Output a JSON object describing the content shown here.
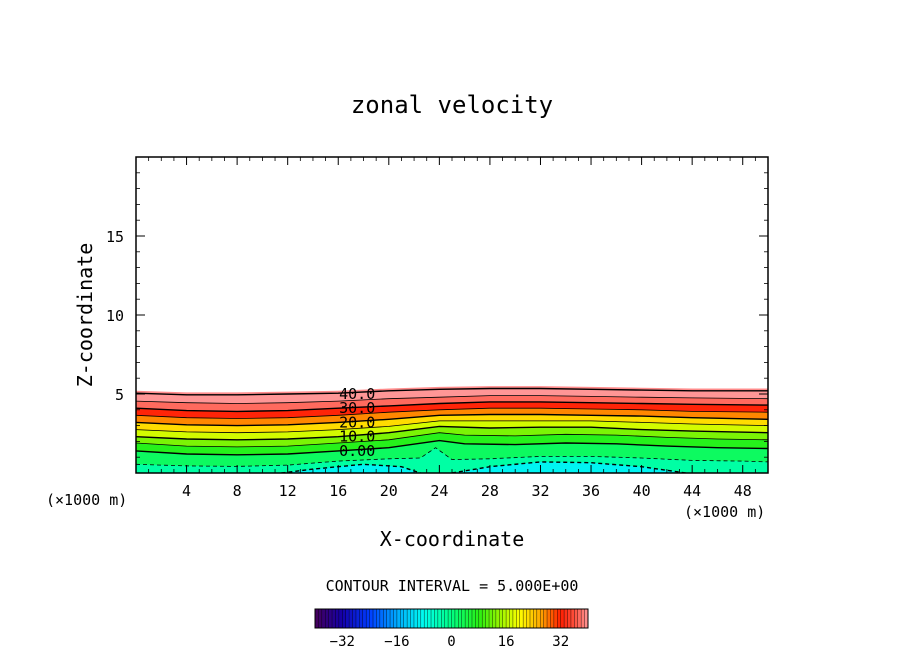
{
  "chart_data": {
    "type": "contour",
    "title": "zonal velocity",
    "xlabel": "X-coordinate",
    "ylabel": "Z-coordinate",
    "x_unit_label_left": "(×1000 m)",
    "x_unit_label_right": "(×1000 m)",
    "xlim": [
      0,
      50
    ],
    "ylim": [
      0,
      20
    ],
    "xticks": [
      4,
      8,
      12,
      16,
      20,
      24,
      28,
      32,
      36,
      40,
      44,
      48
    ],
    "yticks": [
      5,
      10,
      15
    ],
    "contour_interval_text": "CONTOUR INTERVAL = 5.000E+00",
    "contour_interval": 5,
    "contour_labels": [
      {
        "text": "40.0",
        "value": 40,
        "x": 17.5,
        "y": 5.0
      },
      {
        "text": "30.0",
        "value": 30,
        "x": 17.5,
        "y": 4.1
      },
      {
        "text": "20.0",
        "value": 20,
        "x": 17.5,
        "y": 3.2
      },
      {
        "text": "10.0",
        "value": 10,
        "x": 17.5,
        "y": 2.3
      },
      {
        "text": "0.00",
        "value": 0,
        "x": 17.5,
        "y": 1.4
      }
    ],
    "contour_levels": [
      {
        "value": -10,
        "dashed": true,
        "points": [
          [
            11.5,
            0
          ],
          [
            14,
            0.25
          ],
          [
            18,
            0.55
          ],
          [
            21,
            0.4
          ],
          [
            22.5,
            0
          ]
        ]
      },
      {
        "value": -10,
        "dashed": true,
        "points": [
          [
            25,
            0
          ],
          [
            28,
            0.4
          ],
          [
            32,
            0.7
          ],
          [
            36,
            0.65
          ],
          [
            40,
            0.4
          ],
          [
            43.5,
            0
          ]
        ]
      },
      {
        "value": -5,
        "dashed": true,
        "points": [
          [
            0,
            0.55
          ],
          [
            4,
            0.45
          ],
          [
            8,
            0.42
          ],
          [
            12,
            0.5
          ],
          [
            16,
            0.75
          ],
          [
            20,
            0.9
          ],
          [
            22.5,
            0.95
          ],
          [
            23.7,
            1.6
          ],
          [
            25,
            0.85
          ],
          [
            28,
            0.9
          ],
          [
            32,
            1.05
          ],
          [
            36,
            1.05
          ],
          [
            40,
            0.95
          ],
          [
            44,
            0.8
          ],
          [
            48,
            0.75
          ],
          [
            50,
            0.7
          ]
        ]
      },
      {
        "value": 0,
        "dashed": false,
        "points": [
          [
            0,
            1.4
          ],
          [
            4,
            1.2
          ],
          [
            8,
            1.15
          ],
          [
            12,
            1.2
          ],
          [
            16,
            1.4
          ],
          [
            20,
            1.6
          ],
          [
            24,
            2.05
          ],
          [
            26,
            1.85
          ],
          [
            30,
            1.8
          ],
          [
            34,
            1.9
          ],
          [
            38,
            1.85
          ],
          [
            42,
            1.7
          ],
          [
            46,
            1.6
          ],
          [
            50,
            1.55
          ]
        ]
      },
      {
        "value": 5,
        "dashed": false,
        "points": [
          [
            0,
            1.9
          ],
          [
            4,
            1.7
          ],
          [
            8,
            1.65
          ],
          [
            12,
            1.7
          ],
          [
            16,
            1.9
          ],
          [
            20,
            2.1
          ],
          [
            24,
            2.55
          ],
          [
            26,
            2.4
          ],
          [
            30,
            2.35
          ],
          [
            34,
            2.45
          ],
          [
            38,
            2.4
          ],
          [
            42,
            2.25
          ],
          [
            46,
            2.15
          ],
          [
            50,
            2.1
          ]
        ]
      },
      {
        "value": 10,
        "dashed": false,
        "points": [
          [
            0,
            2.3
          ],
          [
            4,
            2.15
          ],
          [
            8,
            2.1
          ],
          [
            12,
            2.15
          ],
          [
            16,
            2.3
          ],
          [
            20,
            2.55
          ],
          [
            24,
            2.95
          ],
          [
            28,
            2.85
          ],
          [
            32,
            2.9
          ],
          [
            36,
            2.9
          ],
          [
            40,
            2.75
          ],
          [
            44,
            2.65
          ],
          [
            50,
            2.55
          ]
        ]
      },
      {
        "value": 15,
        "dashed": false,
        "points": [
          [
            0,
            2.75
          ],
          [
            4,
            2.6
          ],
          [
            8,
            2.55
          ],
          [
            12,
            2.6
          ],
          [
            16,
            2.75
          ],
          [
            20,
            2.95
          ],
          [
            24,
            3.3
          ],
          [
            28,
            3.3
          ],
          [
            32,
            3.3
          ],
          [
            36,
            3.3
          ],
          [
            40,
            3.2
          ],
          [
            44,
            3.1
          ],
          [
            50,
            3.0
          ]
        ]
      },
      {
        "value": 20,
        "dashed": false,
        "points": [
          [
            0,
            3.2
          ],
          [
            4,
            3.05
          ],
          [
            8,
            3.0
          ],
          [
            12,
            3.05
          ],
          [
            16,
            3.2
          ],
          [
            20,
            3.4
          ],
          [
            24,
            3.65
          ],
          [
            28,
            3.7
          ],
          [
            32,
            3.7
          ],
          [
            36,
            3.65
          ],
          [
            40,
            3.6
          ],
          [
            44,
            3.5
          ],
          [
            50,
            3.4
          ]
        ]
      },
      {
        "value": 25,
        "dashed": false,
        "points": [
          [
            0,
            3.65
          ],
          [
            4,
            3.5
          ],
          [
            8,
            3.45
          ],
          [
            12,
            3.5
          ],
          [
            16,
            3.65
          ],
          [
            20,
            3.85
          ],
          [
            24,
            4.0
          ],
          [
            28,
            4.1
          ],
          [
            32,
            4.1
          ],
          [
            36,
            4.05
          ],
          [
            40,
            4.0
          ],
          [
            44,
            3.9
          ],
          [
            50,
            3.85
          ]
        ]
      },
      {
        "value": 30,
        "dashed": false,
        "points": [
          [
            0,
            4.1
          ],
          [
            4,
            3.95
          ],
          [
            8,
            3.9
          ],
          [
            12,
            3.95
          ],
          [
            16,
            4.1
          ],
          [
            20,
            4.25
          ],
          [
            24,
            4.4
          ],
          [
            28,
            4.5
          ],
          [
            32,
            4.5
          ],
          [
            36,
            4.45
          ],
          [
            40,
            4.4
          ],
          [
            44,
            4.35
          ],
          [
            50,
            4.3
          ]
        ]
      },
      {
        "value": 35,
        "dashed": false,
        "points": [
          [
            0,
            4.55
          ],
          [
            4,
            4.45
          ],
          [
            8,
            4.4
          ],
          [
            12,
            4.45
          ],
          [
            16,
            4.55
          ],
          [
            20,
            4.7
          ],
          [
            24,
            4.8
          ],
          [
            28,
            4.9
          ],
          [
            32,
            4.9
          ],
          [
            36,
            4.85
          ],
          [
            40,
            4.8
          ],
          [
            44,
            4.75
          ],
          [
            50,
            4.7
          ]
        ]
      },
      {
        "value": 40,
        "dashed": false,
        "points": [
          [
            0,
            5.05
          ],
          [
            4,
            4.95
          ],
          [
            8,
            4.95
          ],
          [
            12,
            5.0
          ],
          [
            16,
            5.05
          ],
          [
            20,
            5.2
          ],
          [
            24,
            5.3
          ],
          [
            28,
            5.35
          ],
          [
            32,
            5.35
          ],
          [
            36,
            5.3
          ],
          [
            40,
            5.25
          ],
          [
            44,
            5.2
          ],
          [
            50,
            5.2
          ]
        ]
      }
    ],
    "colorbar": {
      "min": -40,
      "max": 40,
      "ticks": [
        -32,
        -16,
        0,
        16,
        32
      ],
      "tick_labels": [
        "−32",
        "−16",
        "0",
        "16",
        "32"
      ]
    }
  }
}
